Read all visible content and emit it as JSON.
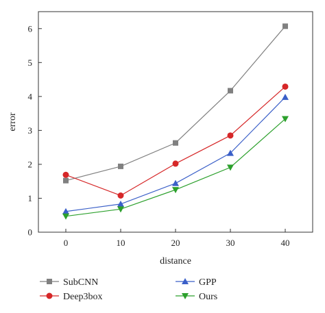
{
  "chart_data": {
    "type": "line",
    "xlabel": "distance",
    "ylabel": "error",
    "xlim": [
      -5,
      45
    ],
    "ylim": [
      0,
      6.5
    ],
    "x_ticks": [
      0,
      10,
      20,
      30,
      40
    ],
    "y_ticks": [
      0,
      1,
      2,
      3,
      4,
      5,
      6
    ],
    "grid": false,
    "legend_position": "bottom",
    "series": [
      {
        "name": "SubCNN",
        "color": "#808080",
        "marker": "square",
        "x": [
          0,
          10,
          20,
          30,
          40
        ],
        "y": [
          1.52,
          1.94,
          2.63,
          4.17,
          6.07
        ]
      },
      {
        "name": "Deep3box",
        "color": "#d62728",
        "marker": "circle",
        "x": [
          0,
          10,
          20,
          30,
          40
        ],
        "y": [
          1.69,
          1.08,
          2.02,
          2.85,
          4.29
        ]
      },
      {
        "name": "GPP",
        "color": "#3a5fc8",
        "marker": "triangle-up",
        "x": [
          0,
          10,
          20,
          30,
          40
        ],
        "y": [
          0.61,
          0.83,
          1.44,
          2.33,
          3.98
        ]
      },
      {
        "name": "Ours",
        "color": "#2ca02c",
        "marker": "triangle-down",
        "x": [
          0,
          10,
          20,
          30,
          40
        ],
        "y": [
          0.47,
          0.68,
          1.25,
          1.91,
          3.34
        ]
      }
    ]
  }
}
